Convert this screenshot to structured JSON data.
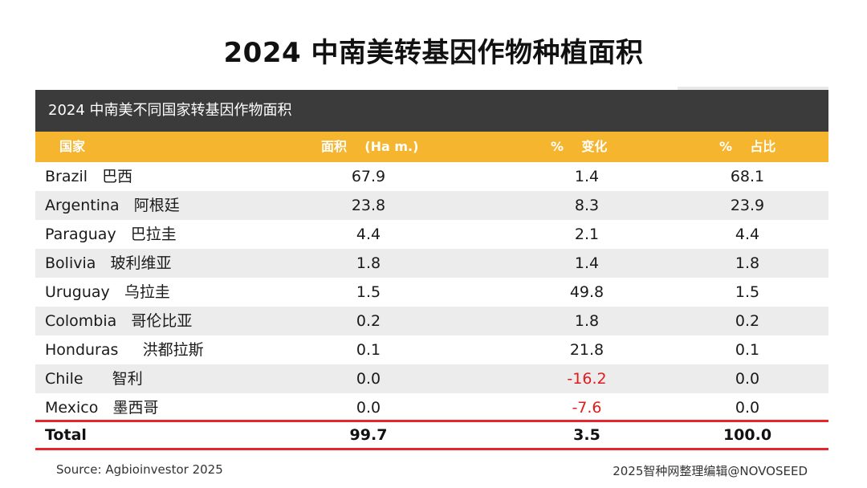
{
  "title": "2024 中南美转基因作物种植面积",
  "table": {
    "subtitle": "2024 中南美不同国家转基因作物面积",
    "headers": {
      "country": "国家",
      "area": "面积    (Ha m.)",
      "change": "%    变化",
      "share": "%    占比"
    },
    "rows": [
      {
        "name": "Brazil   巴西",
        "area": "67.9",
        "change": "1.4",
        "share": "68.1",
        "negative": false
      },
      {
        "name": "Argentina   阿根廷",
        "area": "23.8",
        "change": "8.3",
        "share": "23.9",
        "negative": false
      },
      {
        "name": "Paraguay   巴拉圭",
        "area": "4.4",
        "change": "2.1",
        "share": "4.4",
        "negative": false
      },
      {
        "name": "Bolivia   玻利维亚",
        "area": "1.8",
        "change": "1.4",
        "share": "1.8",
        "negative": false
      },
      {
        "name": "Uruguay   乌拉圭",
        "area": "1.5",
        "change": "49.8",
        "share": "1.5",
        "negative": false
      },
      {
        "name": "Colombia   哥伦比亚",
        "area": "0.2",
        "change": "1.8",
        "share": "0.2",
        "negative": false
      },
      {
        "name": "Honduras     洪都拉斯",
        "area": "0.1",
        "change": "21.8",
        "share": "0.1",
        "negative": false
      },
      {
        "name": "Chile      智利",
        "area": "0.0",
        "change": "-16.2",
        "share": "0.0",
        "negative": true
      },
      {
        "name": "Mexico   墨西哥",
        "area": "0.0",
        "change": "-7.6",
        "share": "0.0",
        "negative": true
      }
    ],
    "total": {
      "label": "Total",
      "area": "99.7",
      "change": "3.5",
      "share": "100.0"
    }
  },
  "footer": {
    "source": "Source: Agbioinvestor 2025",
    "credit": "2025智种网整理编辑@NOVOSEED"
  },
  "colors": {
    "header_bar": "#3b3b3b",
    "header_row": "#f5b52e",
    "alt_row": "#ececec",
    "negative": "#e11b1b",
    "total_border": "#e8252b"
  }
}
